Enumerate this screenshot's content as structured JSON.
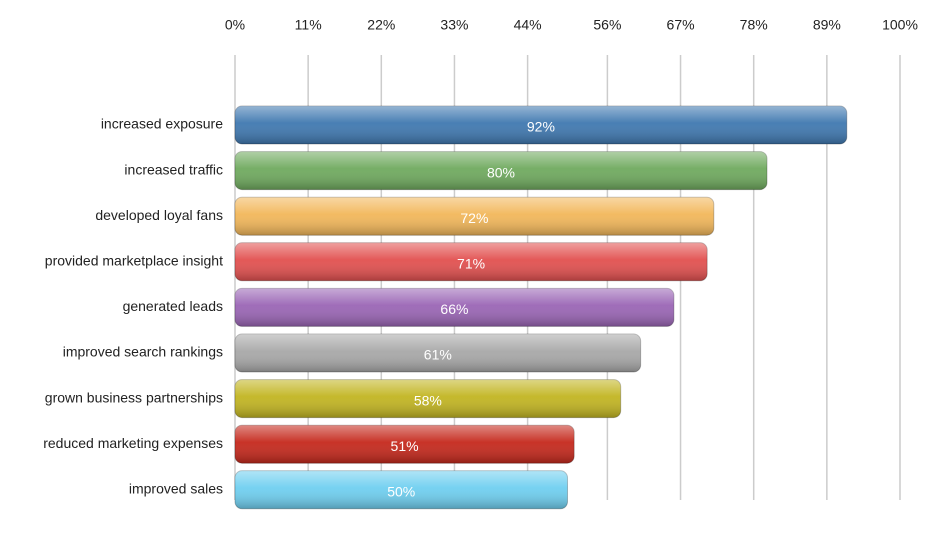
{
  "chart_data": {
    "type": "bar",
    "orientation": "horizontal",
    "categories": [
      "increased exposure",
      "increased traffic",
      "developed loyal fans",
      "provided marketplace insight",
      "generated leads",
      "improved search rankings",
      "grown business partnerships",
      "reduced marketing expenses",
      "improved sales"
    ],
    "values": [
      92,
      80,
      72,
      71,
      66,
      61,
      58,
      51,
      50
    ],
    "value_labels": [
      "92%",
      "80%",
      "72%",
      "71%",
      "66%",
      "61%",
      "58%",
      "51%",
      "50%"
    ],
    "colors": [
      "#3f78b0",
      "#6faa5e",
      "#f2b75a",
      "#e2504f",
      "#9a65b5",
      "#a8a8a8",
      "#c2b521",
      "#c5281c",
      "#6fcff0"
    ],
    "xlim": [
      0,
      100
    ],
    "xticks": [
      {
        "value": 0,
        "label": "0%"
      },
      {
        "value": 11,
        "label": "11%"
      },
      {
        "value": 22,
        "label": "22%"
      },
      {
        "value": 33,
        "label": "33%"
      },
      {
        "value": 44,
        "label": "44%"
      },
      {
        "value": 56,
        "label": "56%"
      },
      {
        "value": 67,
        "label": "67%"
      },
      {
        "value": 78,
        "label": "78%"
      },
      {
        "value": 89,
        "label": "89%"
      },
      {
        "value": 100,
        "label": "100%"
      }
    ],
    "grid": true
  }
}
